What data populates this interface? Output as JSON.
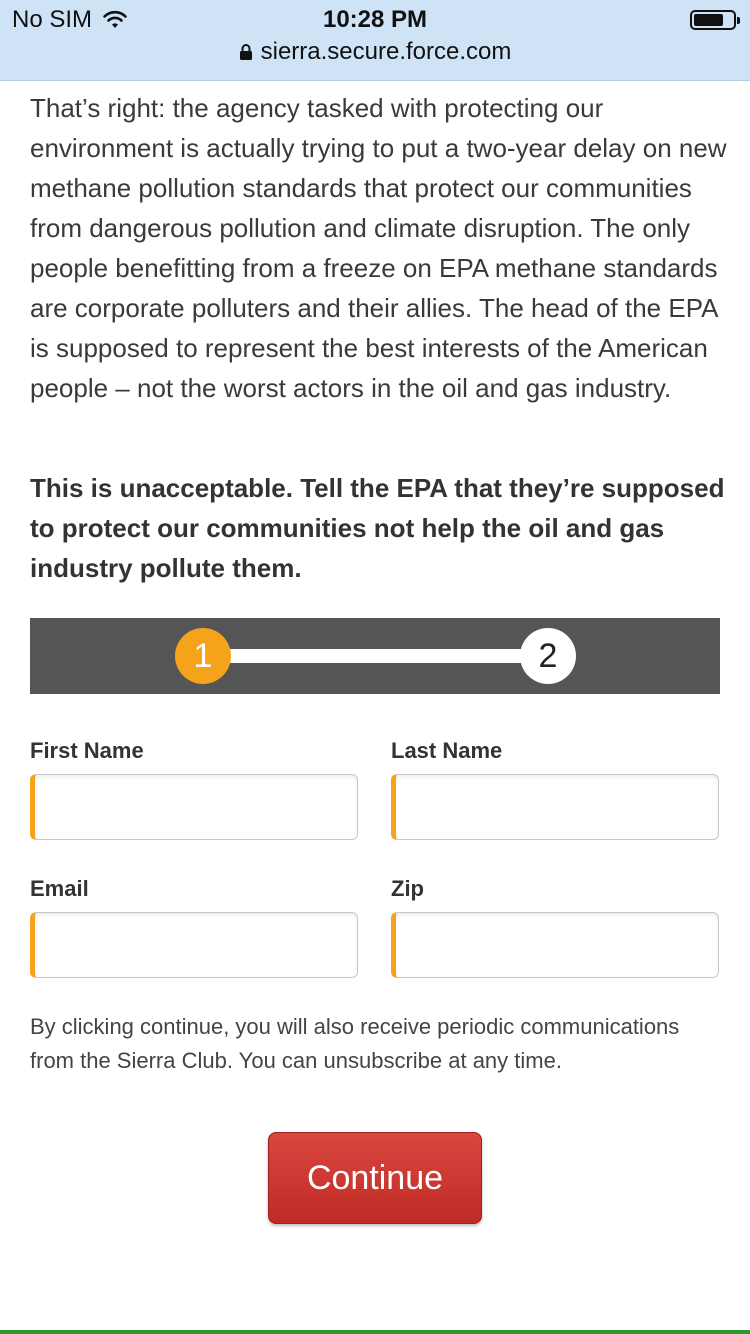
{
  "status_bar": {
    "carrier": "No SIM",
    "time": "10:28 PM",
    "url": "sierra.secure.force.com",
    "icons": [
      "wifi-icon",
      "battery-icon",
      "lock-icon"
    ]
  },
  "content": {
    "paragraph": "That’s right: the agency tasked with protecting our environment is actually trying to put a two-year delay on new methane pollution standards that protect our communities from dangerous pollution and climate disruption. The only people benefitting from a freeze on EPA methane standards are corporate polluters and their allies. The head of the EPA is supposed to represent the best interests of the American people – not the worst actors in the oil and gas industry.",
    "callout": "This is unacceptable. Tell the EPA that they’re supposed to protect our communities not help the oil and gas industry pollute them."
  },
  "stepper": {
    "steps": [
      {
        "label": "1",
        "active": true
      },
      {
        "label": "2",
        "active": false
      }
    ],
    "active_color": "#f5a31a"
  },
  "form": {
    "first_name_label": "First Name",
    "first_name_value": "",
    "last_name_label": "Last Name",
    "last_name_value": "",
    "email_label": "Email",
    "email_value": "",
    "zip_label": "Zip",
    "zip_value": "",
    "disclaimer": "By clicking continue, you will also receive periodic communications from the Sierra Club. You can unsubscribe at any time.",
    "continue_label": "Continue",
    "button_color": "#c8322d"
  }
}
